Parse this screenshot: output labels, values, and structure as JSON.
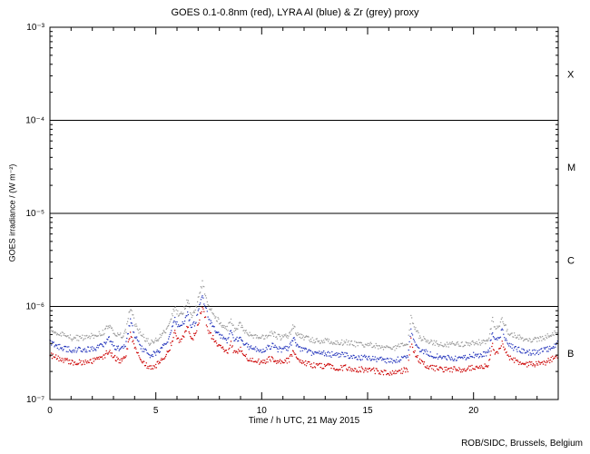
{
  "page": {
    "background": "#ffffff"
  },
  "credit": "ROB/SIDC, Brussels, Belgium",
  "chart_data": {
    "type": "line",
    "title": "GOES 0.1-0.8nm (red), LYRA Al (blue) & Zr (grey) proxy",
    "xlabel": "Time / h UTC, 21 May 2015",
    "ylabel": "GOES irradiance / (W m⁻²)",
    "xlim": [
      0,
      24
    ],
    "ylim": [
      1e-07,
      0.001
    ],
    "y_scale": "log",
    "grid": "off",
    "legend_position": "none",
    "x_minor_tick_step": 1,
    "x_ticks": [
      {
        "value": 0,
        "label": "0"
      },
      {
        "value": 5,
        "label": "5"
      },
      {
        "value": 10,
        "label": "10"
      },
      {
        "value": 15,
        "label": "15"
      },
      {
        "value": 20,
        "label": "20"
      }
    ],
    "y_ticks": [
      {
        "value": 0.001,
        "label": "10⁻³"
      },
      {
        "value": 0.0001,
        "label": "10⁻⁴"
      },
      {
        "value": 1e-05,
        "label": "10⁻⁵"
      },
      {
        "value": 1e-06,
        "label": "10⁻⁶"
      },
      {
        "value": 1e-07,
        "label": "10⁻⁷"
      }
    ],
    "threshold_lines": [
      0.0001,
      1e-05,
      1e-06
    ],
    "flare_classes": [
      {
        "label": "X",
        "range": [
          0.0001,
          0.001
        ]
      },
      {
        "label": "M",
        "range": [
          1e-05,
          0.0001
        ]
      },
      {
        "label": "C",
        "range": [
          1e-06,
          1e-05
        ]
      },
      {
        "label": "B",
        "range": [
          1e-07,
          1e-06
        ]
      }
    ],
    "x": [
      0,
      0.5,
      1,
      1.5,
      2,
      2.5,
      2.8,
      3.1,
      3.4,
      3.6,
      3.8,
      4,
      4.3,
      4.7,
      5,
      5.3,
      5.6,
      5.9,
      6.1,
      6.3,
      6.5,
      6.7,
      6.9,
      7.1,
      7.2,
      7.35,
      7.5,
      7.8,
      8.1,
      8.4,
      8.55,
      8.7,
      9,
      9.2,
      9.5,
      10,
      10.5,
      10.7,
      11,
      11.3,
      11.5,
      11.7,
      12,
      12.5,
      13,
      13.5,
      14,
      14.5,
      15,
      15.5,
      16,
      16.5,
      16.9,
      17.05,
      17.2,
      17.5,
      18,
      18.5,
      19,
      19.5,
      20,
      20.4,
      20.7,
      20.9,
      21.05,
      21.2,
      21.35,
      21.6,
      22,
      22.5,
      23,
      23.4,
      23.7,
      24
    ],
    "series": [
      {
        "name": "GOES 0.1-0.8nm",
        "color": "#cc0000",
        "values": [
          3e-07,
          2.7e-07,
          2.5e-07,
          2.5e-07,
          2.6e-07,
          2.8e-07,
          3.4e-07,
          2.7e-07,
          2.6e-07,
          3e-07,
          5.3e-07,
          3.6e-07,
          2.7e-07,
          2.2e-07,
          2.3e-07,
          2.7e-07,
          3.2e-07,
          5.4e-07,
          4.2e-07,
          4.8e-07,
          6.2e-07,
          4.4e-07,
          5.2e-07,
          8e-07,
          9.6e-07,
          7.2e-07,
          5.4e-07,
          4.2e-07,
          3.5e-07,
          3.2e-07,
          4e-07,
          3.1e-07,
          3.5e-07,
          2.9e-07,
          2.7e-07,
          2.5e-07,
          2.8e-07,
          2.6e-07,
          2.5e-07,
          2.7e-07,
          3.3e-07,
          2.7e-07,
          2.5e-07,
          2.3e-07,
          2.3e-07,
          2.2e-07,
          2.2e-07,
          2.1e-07,
          2.1e-07,
          2e-07,
          1.9e-07,
          2e-07,
          2.1e-07,
          4.4e-07,
          3.2e-07,
          2.5e-07,
          2.2e-07,
          2.1e-07,
          2.1e-07,
          2.1e-07,
          2.2e-07,
          2.2e-07,
          2.4e-07,
          3.9e-07,
          3.1e-07,
          3.3e-07,
          4.1e-07,
          2.9e-07,
          2.6e-07,
          2.4e-07,
          2.4e-07,
          2.5e-07,
          2.7e-07,
          3e-07
        ]
      },
      {
        "name": "LYRA Al proxy",
        "color": "#2233bb",
        "values": [
          4.1e-07,
          3.6e-07,
          3.4e-07,
          3.4e-07,
          3.5e-07,
          3.8e-07,
          4.6e-07,
          3.6e-07,
          3.5e-07,
          4.1e-07,
          7.2e-07,
          4.9e-07,
          3.6e-07,
          3e-07,
          3.1e-07,
          3.6e-07,
          4.3e-07,
          7.3e-07,
          5.7e-07,
          6.5e-07,
          8.4e-07,
          5.9e-07,
          7e-07,
          1.08e-06,
          1.3e-06,
          9.7e-07,
          7.3e-07,
          5.7e-07,
          4.7e-07,
          4.3e-07,
          5.4e-07,
          4.2e-07,
          4.7e-07,
          3.9e-07,
          3.6e-07,
          3.4e-07,
          3.8e-07,
          3.5e-07,
          3.4e-07,
          3.6e-07,
          4.5e-07,
          3.6e-07,
          3.4e-07,
          3.1e-07,
          3.1e-07,
          3e-07,
          3e-07,
          2.8e-07,
          2.8e-07,
          2.7e-07,
          2.6e-07,
          2.7e-07,
          2.8e-07,
          5.9e-07,
          4.3e-07,
          3.4e-07,
          3e-07,
          2.8e-07,
          2.8e-07,
          2.8e-07,
          3e-07,
          3e-07,
          3.2e-07,
          5.3e-07,
          4.2e-07,
          4.5e-07,
          5.5e-07,
          3.9e-07,
          3.5e-07,
          3.2e-07,
          3.2e-07,
          3.4e-07,
          3.6e-07,
          4.1e-07
        ]
      },
      {
        "name": "LYRA Zr proxy",
        "color": "#999999",
        "values": [
          5.6e-07,
          5e-07,
          4.6e-07,
          4.6e-07,
          4.8e-07,
          5.2e-07,
          6.3e-07,
          5e-07,
          4.8e-07,
          5.6e-07,
          9.8e-07,
          6.7e-07,
          5e-07,
          4.1e-07,
          4.3e-07,
          5e-07,
          5.9e-07,
          1e-06,
          7.8e-07,
          8.9e-07,
          1.15e-06,
          8.1e-07,
          9.6e-07,
          1.48e-06,
          1.78e-06,
          1.33e-06,
          1e-06,
          7.8e-07,
          6.5e-07,
          5.9e-07,
          7.4e-07,
          5.7e-07,
          6.5e-07,
          5.4e-07,
          5e-07,
          4.6e-07,
          5.2e-07,
          4.8e-07,
          4.6e-07,
          5e-07,
          6.1e-07,
          5e-07,
          4.6e-07,
          4.3e-07,
          4.3e-07,
          4.1e-07,
          4.1e-07,
          3.9e-07,
          3.9e-07,
          3.7e-07,
          3.5e-07,
          3.7e-07,
          3.9e-07,
          8.1e-07,
          5.9e-07,
          4.6e-07,
          4.1e-07,
          3.9e-07,
          3.9e-07,
          3.9e-07,
          4.1e-07,
          4.1e-07,
          4.4e-07,
          7.2e-07,
          5.7e-07,
          6.1e-07,
          7.6e-07,
          5.4e-07,
          4.8e-07,
          4.4e-07,
          4.4e-07,
          4.6e-07,
          5e-07,
          5.6e-07
        ]
      }
    ]
  }
}
